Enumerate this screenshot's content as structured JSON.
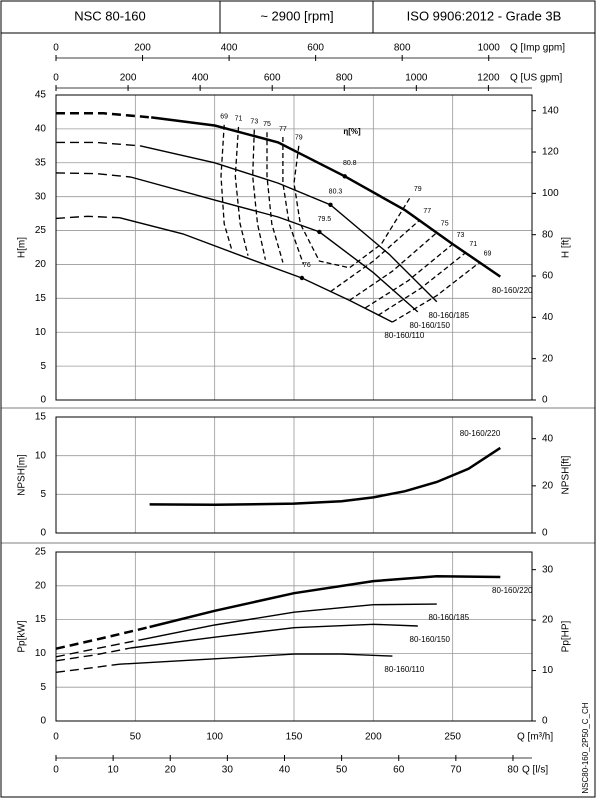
{
  "header": {
    "model": "NSC 80-160",
    "speed": "~ 2900 [rpm]",
    "standard": "ISO 9906:2012 - Grade 3B"
  },
  "side_label": "NSC80-160_2P50_C_CH",
  "chart_data": [
    {
      "type": "line",
      "ylabel": "H[m]",
      "y2label": "H [ft]",
      "ylim": [
        0,
        45
      ],
      "yticks": [
        0,
        5,
        10,
        15,
        20,
        25,
        30,
        35,
        40,
        45
      ],
      "y2lim": [
        0,
        147.6
      ],
      "y2ticks": [
        0,
        20,
        40,
        60,
        80,
        100,
        120,
        140
      ],
      "grid": true,
      "top_axes": [
        {
          "label": "Q [Imp gpm]",
          "xlim": [
            0,
            1100
          ],
          "xticks": [
            0,
            200,
            400,
            600,
            800,
            1000
          ]
        },
        {
          "label": "Q [US gpm]",
          "xlim": [
            0,
            1321
          ],
          "xticks": [
            0,
            200,
            400,
            600,
            800,
            1000,
            1200
          ]
        }
      ],
      "series": [
        {
          "name": "80-160/220",
          "color": "#000000",
          "dashed_x": [
            0,
            30,
            60
          ],
          "dashed_values": [
            42.3,
            42.3,
            41.7
          ],
          "x": [
            60,
            100,
            140,
            182,
            220,
            250,
            280
          ],
          "values": [
            41.7,
            40.5,
            38,
            33,
            28,
            23,
            18.2
          ]
        },
        {
          "name": "80-160/185",
          "color": "#000000",
          "dashed_x": [
            0,
            25,
            53
          ],
          "dashed_values": [
            38,
            38,
            37.5
          ],
          "x": [
            53,
            100,
            140,
            173,
            210,
            240
          ],
          "values": [
            37.5,
            35,
            32,
            28.8,
            21.5,
            14.5
          ]
        },
        {
          "name": "80-160/150",
          "color": "#000000",
          "dashed_x": [
            0,
            25,
            47
          ],
          "dashed_values": [
            33.5,
            33.4,
            32.9
          ],
          "x": [
            47,
            100,
            140,
            166,
            200,
            228
          ],
          "values": [
            32.9,
            29.5,
            27,
            24.8,
            18.8,
            13
          ]
        },
        {
          "name": "80-160/110",
          "color": "#000000",
          "dashed_x": [
            0,
            20,
            40
          ],
          "dashed_values": [
            26.8,
            27.1,
            26.9
          ],
          "x": [
            40,
            80,
            120,
            155,
            185,
            212
          ],
          "values": [
            26.9,
            24.5,
            21,
            18,
            14.7,
            11.5
          ]
        }
      ],
      "efficiency_title": "η[%]",
      "efficiency_contours": [
        {
          "label": "69",
          "x": [
            106,
            104,
            106,
            111
          ],
          "values": [
            40.6,
            33,
            26,
            22
          ]
        },
        {
          "label": "71",
          "x": [
            115,
            113,
            116,
            121
          ],
          "values": [
            40.3,
            33,
            26,
            21.3
          ]
        },
        {
          "label": "73",
          "x": [
            125,
            124,
            127,
            132
          ],
          "values": [
            39.9,
            33,
            26,
            20.7
          ]
        },
        {
          "label": "75",
          "x": [
            133,
            133,
            136,
            143
          ],
          "values": [
            39.5,
            33,
            26,
            20.3
          ]
        },
        {
          "label": "77",
          "x": [
            143,
            143,
            147,
            156
          ],
          "values": [
            38.8,
            32,
            26,
            20
          ]
        },
        {
          "label": "79",
          "x": [
            153,
            150,
            154,
            166,
            185,
            205,
            223
          ],
          "values": [
            37.5,
            32,
            26,
            20.5,
            19.5,
            23,
            29.8
          ]
        },
        {
          "label": "77",
          "x": [
            173,
            200,
            229
          ],
          "values": [
            16,
            20.5,
            26.5
          ]
        },
        {
          "label": "75",
          "x": [
            185,
            212,
            240
          ],
          "values": [
            14.7,
            19,
            24.7
          ]
        },
        {
          "label": "73",
          "x": [
            195,
            222,
            250
          ],
          "values": [
            13.6,
            17.6,
            23
          ]
        },
        {
          "label": "71",
          "x": [
            203,
            230,
            258
          ],
          "values": [
            12.5,
            16.5,
            21.7
          ]
        },
        {
          "label": "69",
          "x": [
            212,
            240,
            267
          ],
          "values": [
            11.5,
            15.4,
            20.3
          ]
        }
      ],
      "efficiency_points": [
        {
          "label": "80.8",
          "x": 182,
          "value": 33
        },
        {
          "label": "80.3",
          "x": 173,
          "value": 28.8
        },
        {
          "label": "79.5",
          "x": 166,
          "value": 24.8
        },
        {
          "label": "76",
          "x": 155,
          "value": 18
        }
      ]
    },
    {
      "type": "line",
      "ylabel": "NPSH[m]",
      "y2label": "NPSH[ft]",
      "ylim": [
        0,
        15
      ],
      "yticks": [
        0,
        5,
        10,
        15
      ],
      "y2lim": [
        0,
        49.2
      ],
      "y2ticks": [
        0,
        20,
        40
      ],
      "grid": true,
      "series": [
        {
          "name": "80-160/220",
          "color": "#000000",
          "x": [
            59,
            100,
            150,
            180,
            200,
            220,
            240,
            260,
            280
          ],
          "values": [
            3.7,
            3.65,
            3.8,
            4.1,
            4.6,
            5.4,
            6.6,
            8.3,
            11
          ]
        }
      ]
    },
    {
      "type": "line",
      "ylabel": "Pp[kW]",
      "y2label": "Pp[HP]",
      "xlabel": "Q [m³/h]",
      "xlim": [
        0,
        300
      ],
      "xticks": [
        0,
        50,
        100,
        150,
        200,
        250
      ],
      "ylim": [
        0,
        25
      ],
      "yticks": [
        0,
        5,
        10,
        15,
        20,
        25
      ],
      "y2lim": [
        0,
        33.5
      ],
      "y2ticks": [
        0,
        10,
        20,
        30
      ],
      "grid": true,
      "bottom_axes": [
        {
          "label": "Q [l/s]",
          "xlim": [
            0,
            83.33
          ],
          "xticks": [
            0,
            10,
            20,
            30,
            40,
            50,
            60,
            70,
            80
          ]
        }
      ],
      "series": [
        {
          "name": "80-160/220",
          "color": "#000000",
          "dashed_x": [
            0,
            30,
            59
          ],
          "dashed_values": [
            10.7,
            12.3,
            13.9
          ],
          "x": [
            59,
            100,
            150,
            200,
            240,
            280
          ],
          "values": [
            13.9,
            16.3,
            18.9,
            20.7,
            21.4,
            21.3
          ]
        },
        {
          "name": "80-160/185",
          "color": "#000000",
          "dashed_x": [
            0,
            25,
            53
          ],
          "dashed_values": [
            9.5,
            10.7,
            12
          ],
          "x": [
            53,
            100,
            150,
            200,
            240
          ],
          "values": [
            12,
            14.2,
            16.1,
            17.2,
            17.3
          ]
        },
        {
          "name": "80-160/150",
          "color": "#000000",
          "dashed_x": [
            0,
            25,
            47
          ],
          "dashed_values": [
            8.9,
            9.8,
            10.8
          ],
          "x": [
            47,
            100,
            150,
            200,
            228
          ],
          "values": [
            10.8,
            12.4,
            13.8,
            14.3,
            14.05
          ]
        },
        {
          "name": "80-160/110",
          "color": "#000000",
          "dashed_x": [
            0,
            20,
            40
          ],
          "dashed_values": [
            7.2,
            7.8,
            8.4
          ],
          "x": [
            40,
            100,
            150,
            180,
            212
          ],
          "values": [
            8.4,
            9.2,
            9.9,
            9.9,
            9.6
          ]
        }
      ]
    }
  ]
}
